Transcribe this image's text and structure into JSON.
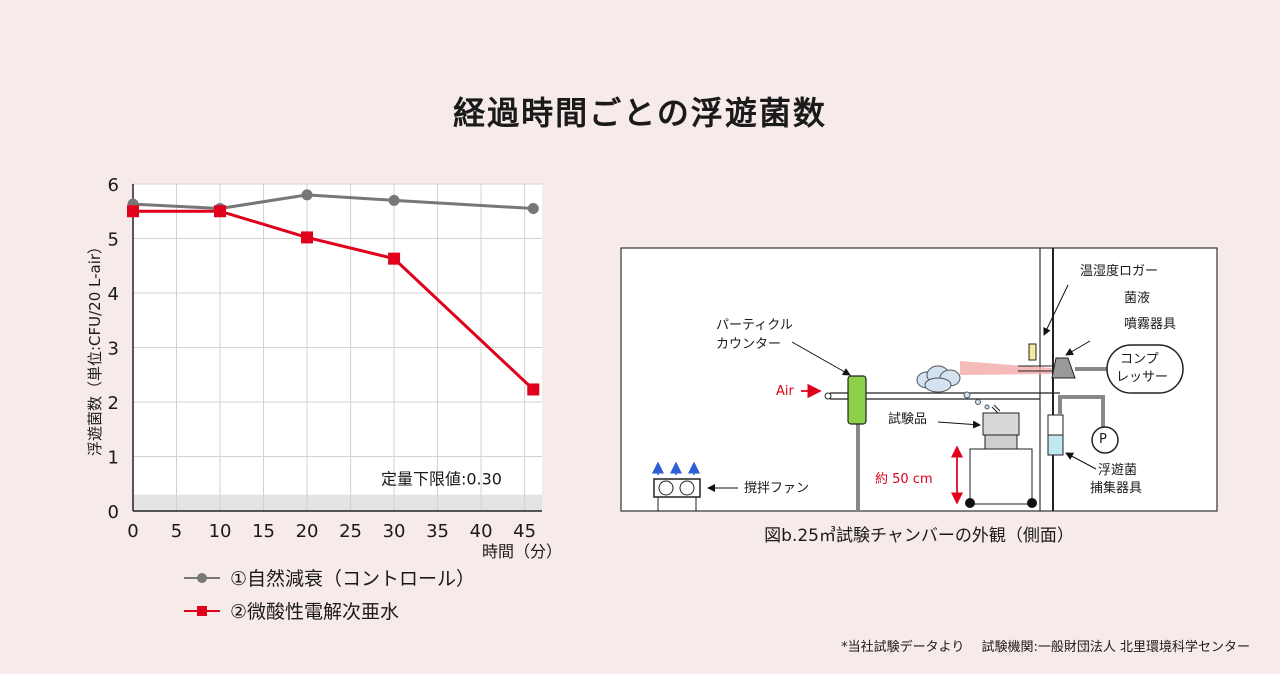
{
  "title": "経過時間ごとの浮遊菌数",
  "chart_data": {
    "type": "line",
    "ylabel": "浮遊菌数（単位:CFU/20 L-air）",
    "xlabel": "時間（分）",
    "xlim": [
      0,
      47
    ],
    "ylim": [
      0,
      6
    ],
    "xticks": [
      0,
      5,
      10,
      15,
      20,
      25,
      30,
      35,
      40,
      45
    ],
    "yticks": [
      0,
      1,
      2,
      3,
      4,
      5,
      6
    ],
    "grid": true,
    "annotation": "定量下限値:0.30",
    "detection_limit": 0.3,
    "series": [
      {
        "name": "①自然減衰（コントロール）",
        "color": "#777777",
        "marker": "circle",
        "x": [
          0,
          10,
          20,
          30,
          46
        ],
        "values": [
          5.63,
          5.55,
          5.8,
          5.7,
          5.55
        ]
      },
      {
        "name": "②微酸性電解次亜水",
        "color": "#e0001b",
        "marker": "square",
        "x": [
          0,
          10,
          20,
          30,
          46
        ],
        "values": [
          5.5,
          5.5,
          5.02,
          4.63,
          2.23
        ]
      }
    ]
  },
  "diagram": {
    "caption": "図b.25㎥試験チャンバーの外観（側面）",
    "labels": {
      "logger": "温湿度ロガー",
      "liquid": "菌液",
      "sprayer": "噴霧器具",
      "particle_counter_1": "パーティクル",
      "particle_counter_2": "カウンター",
      "compressor_1": "コンプ",
      "compressor_2": "レッサー",
      "air": "Air",
      "sample": "試験品",
      "pump": "P",
      "height": "約 50 cm",
      "collector_1": "浮遊菌",
      "collector_2": "捕集器具",
      "fan": "撹拌ファン"
    }
  },
  "footnote": "*当社試験データより　 試験機関:一般財団法人 北里環境科学センター"
}
